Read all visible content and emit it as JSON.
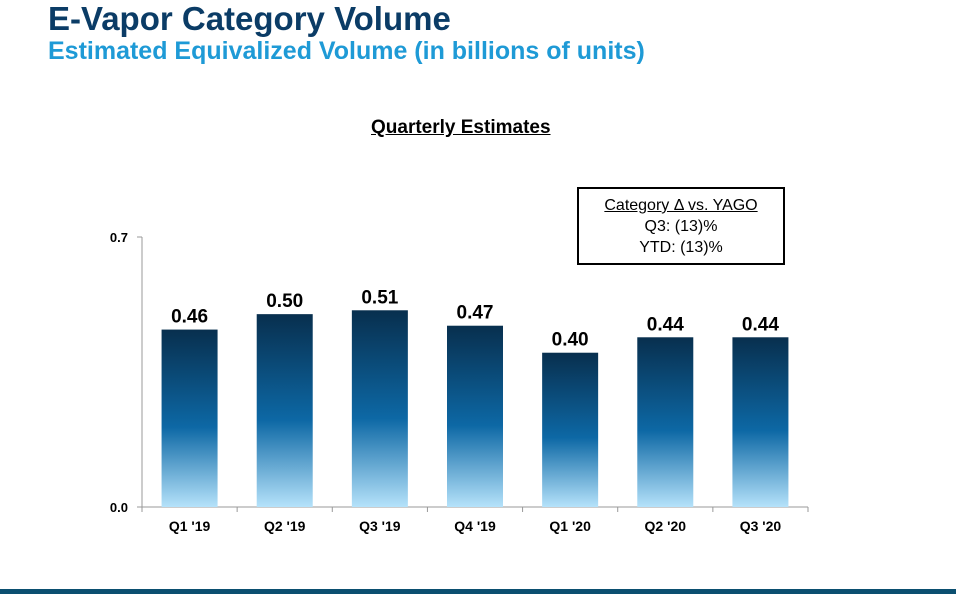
{
  "header": {
    "title": "E-Vapor Category Volume",
    "subtitle": "Estimated Equivalized Volume (in billions of units)"
  },
  "legend_box": {
    "heading": "Category Δ vs. YAGO",
    "q3_line": "Q3: (13)%",
    "ytd_line": "YTD: (13)%"
  },
  "colors": {
    "title": "#0b3c66",
    "subtitle": "#1e9ad6",
    "bar_top": "#082f4e",
    "bar_mid": "#0d68a5",
    "bar_bottom": "#b5e2fa",
    "bottom_bar": "#0b4f70"
  },
  "chart_data": {
    "type": "bar",
    "title": "Quarterly Estimates",
    "categories": [
      "Q1 '19",
      "Q2 '19",
      "Q3 '19",
      "Q4 '19",
      "Q1 '20",
      "Q2 '20",
      "Q3 '20"
    ],
    "values": [
      0.46,
      0.5,
      0.51,
      0.47,
      0.4,
      0.44,
      0.44
    ],
    "value_labels": [
      "0.46",
      "0.50",
      "0.51",
      "0.47",
      "0.40",
      "0.44",
      "0.44"
    ],
    "ylim": [
      0.0,
      0.7
    ],
    "yticks": [
      "0.0",
      "0.7"
    ],
    "xlabel": "",
    "ylabel": "",
    "grid": false
  }
}
